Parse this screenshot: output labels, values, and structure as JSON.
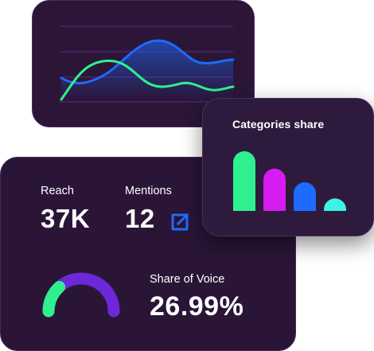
{
  "colors": {
    "card_bg": "#2a1537",
    "grid": "#6f2fa0",
    "blue": "#1d6bff",
    "green": "#2ef08f",
    "magenta": "#d61cf0",
    "cyan": "#3ff2e6",
    "purple": "#6d28d9",
    "white": "#ffffff"
  },
  "categories_card": {
    "title": "Categories share"
  },
  "chart_data": {
    "type": "bar",
    "title": "Categories share",
    "series": [
      {
        "color": "#2ef08f",
        "value": 1.0
      },
      {
        "color": "#d61cf0",
        "value": 0.71
      },
      {
        "color": "#1d6bff",
        "value": 0.48
      },
      {
        "color": "#3ff2e6",
        "value": 0.21
      }
    ]
  },
  "metrics": {
    "reach": {
      "label": "Reach",
      "value": "37K"
    },
    "mentions": {
      "label": "Mentions",
      "value": "12",
      "icon": "external-link-icon"
    },
    "share_of_voice": {
      "label": "Share of Voice",
      "value": "26.99%",
      "gauge_fraction": 0.27
    }
  }
}
